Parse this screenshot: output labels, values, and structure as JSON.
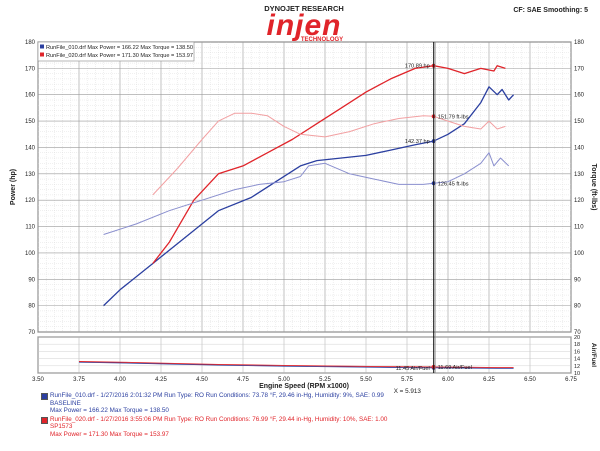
{
  "header": {
    "brand_top": "DYNOJET RESEARCH",
    "logo_text": "injen",
    "logo_sub": "TECHNOLOGY",
    "cf_text": "CF: SAE  Smoothing: 5"
  },
  "legend": [
    {
      "text": "RunFile_010.drf Max Power = 166.22   Max Torque = 138.50",
      "color": "#2b3fa0"
    },
    {
      "text": "RunFile_020.drf Max Power = 171.30   Max Torque = 153.97",
      "color": "#e0242a"
    }
  ],
  "colors": {
    "run1": "#2b3fa0",
    "run1_light": "#8a8fce",
    "run2": "#e0242a",
    "run2_light": "#f2a0a2"
  },
  "annotations": [
    {
      "label": "170.89 hp",
      "x": 5.93,
      "y": 171.0,
      "axis": "hp",
      "color": "#e0242a"
    },
    {
      "label": "151.79 ft-lbs",
      "x": 5.93,
      "y": 151.8,
      "axis": "hp",
      "color": "#e0242a"
    },
    {
      "label": "142.37 hp",
      "x": 5.88,
      "y": 142.4,
      "axis": "hp",
      "color": "#2b3fa0"
    },
    {
      "label": "126.45 ft-lbs",
      "x": 5.93,
      "y": 126.4,
      "axis": "hp",
      "color": "#2b3fa0"
    },
    {
      "label": "11.45 Air/Fuel",
      "x": 5.82,
      "y": 11.45,
      "axis": "af",
      "color": "#2b3fa0"
    },
    {
      "label": "11.69 Air/Fuel",
      "x": 5.93,
      "y": 11.69,
      "axis": "af",
      "color": "#e0242a"
    }
  ],
  "cursor_label": "X = 5.913",
  "footer": {
    "run1": {
      "line1": "RunFile_010.drf - 1/27/2016 2:01:32 PM  Run Type: RO  Run Conditions: 73.78 °F, 29.46 in-Hg,  Humidity:  9%, SAE: 0.99",
      "line2": "BASELINE",
      "line3": "Max Power = 166.22  Max Torque = 138.50",
      "color": "#2b3fa0"
    },
    "run2": {
      "line1": "RunFile_020.drf - 1/27/2016 3:55:06 PM  Run Type: RO  Run Conditions: 76.99 °F, 29.44 in-Hg,  Humidity:  10%, SAE: 1.00",
      "line2": "SP1573",
      "line3": "Max Power = 171.30  Max Torque = 153.97",
      "color": "#e0242a"
    }
  },
  "chart_data": [
    {
      "type": "line",
      "xlabel": "Engine Speed (RPM x1000)",
      "ylabel": "Power (hp)",
      "y2label": "Torque (ft-lbs)",
      "xlim": [
        3.5,
        6.75
      ],
      "ylim": [
        70,
        180
      ],
      "xticks": [
        3.5,
        3.75,
        4.0,
        4.25,
        4.5,
        4.75,
        5.0,
        5.25,
        5.5,
        5.75,
        6.0,
        6.25,
        6.5,
        6.75
      ],
      "xtick_labels": [
        "3.50",
        "3.75",
        "4.00",
        "4.25",
        "4.50",
        "4.75",
        "5.00",
        "5.25",
        "5.50",
        "5.75",
        "6.00",
        "6.25",
        "6.50",
        "6.75"
      ],
      "yticks": [
        70,
        80,
        90,
        100,
        110,
        120,
        130,
        140,
        150,
        160,
        170,
        180
      ],
      "ytick_labels": [
        "70",
        "80",
        "90",
        "100",
        "110",
        "120",
        "130",
        "140",
        "150",
        "160",
        "170",
        "180"
      ],
      "y2tick_labels": [
        "70",
        "80",
        "90",
        "100",
        "110",
        "120",
        "130",
        "140",
        "150",
        "160",
        "170",
        "180"
      ],
      "grid": true,
      "series": [
        {
          "name": "RunFile_010.drf",
          "key": "run1",
          "quantity": "power",
          "x": [
            3.9,
            4.0,
            4.2,
            4.4,
            4.6,
            4.8,
            4.95,
            5.05,
            5.1,
            5.2,
            5.35,
            5.5,
            5.65,
            5.8,
            5.913,
            6.0,
            6.1,
            6.2,
            6.25,
            6.3,
            6.33,
            6.37,
            6.4
          ],
          "y": [
            80,
            86,
            96,
            106,
            116,
            121,
            127,
            131,
            133,
            135,
            136,
            137,
            139,
            141,
            142.4,
            145,
            149,
            157,
            163,
            160,
            162,
            158,
            160
          ]
        },
        {
          "name": "RunFile_020.drf",
          "key": "run2",
          "quantity": "power",
          "x": [
            4.2,
            4.3,
            4.45,
            4.6,
            4.75,
            4.9,
            5.05,
            5.2,
            5.35,
            5.5,
            5.65,
            5.8,
            5.913,
            6.0,
            6.1,
            6.2,
            6.28,
            6.3,
            6.35
          ],
          "y": [
            96,
            104,
            120,
            130,
            133,
            138,
            143,
            149,
            155,
            161,
            166,
            170,
            171,
            170,
            168,
            170,
            169,
            171,
            170
          ]
        },
        {
          "name": "RunFile_010.drf",
          "key": "run1",
          "quantity": "torque",
          "x": [
            3.9,
            4.1,
            4.3,
            4.5,
            4.7,
            4.85,
            5.0,
            5.1,
            5.15,
            5.25,
            5.4,
            5.55,
            5.7,
            5.85,
            5.913,
            6.0,
            6.1,
            6.2,
            6.25,
            6.28,
            6.32,
            6.37
          ],
          "y": [
            107,
            111,
            116,
            120,
            124,
            126,
            127,
            129,
            133,
            134,
            130,
            128,
            126,
            126,
            126.4,
            127,
            130,
            134,
            138,
            133,
            136,
            133
          ]
        },
        {
          "name": "RunFile_020.drf",
          "key": "run2",
          "quantity": "torque",
          "x": [
            4.2,
            4.35,
            4.5,
            4.6,
            4.7,
            4.8,
            4.9,
            5.0,
            5.1,
            5.25,
            5.4,
            5.55,
            5.7,
            5.85,
            5.913,
            6.0,
            6.1,
            6.2,
            6.25,
            6.3,
            6.35
          ],
          "y": [
            122,
            132,
            143,
            150,
            153,
            153,
            152,
            148,
            145,
            144,
            146,
            149,
            151,
            152,
            151.8,
            150,
            148,
            147,
            150,
            147,
            148
          ]
        }
      ]
    },
    {
      "type": "line",
      "ylabel": "Air/Fuel",
      "xlim": [
        3.5,
        6.75
      ],
      "ylim": [
        10,
        20
      ],
      "y2ticks": [
        10,
        12,
        14,
        16,
        18,
        20
      ],
      "y2tick_labels": [
        "10",
        "12",
        "14",
        "16",
        "18",
        "20"
      ],
      "grid": true,
      "series": [
        {
          "name": "RunFile_010.drf",
          "key": "run1",
          "quantity": "air-fuel",
          "x": [
            3.75,
            4.0,
            4.3,
            4.6,
            5.0,
            5.4,
            5.7,
            5.913,
            6.1,
            6.3,
            6.4
          ],
          "y": [
            13.0,
            12.8,
            12.5,
            12.2,
            11.9,
            11.7,
            11.5,
            11.45,
            11.4,
            11.3,
            11.3
          ]
        },
        {
          "name": "RunFile_020.drf",
          "key": "run2",
          "quantity": "air-fuel",
          "x": [
            3.75,
            4.0,
            4.3,
            4.6,
            5.0,
            5.4,
            5.7,
            5.913,
            6.1,
            6.3,
            6.4
          ],
          "y": [
            13.2,
            13.0,
            12.7,
            12.4,
            12.1,
            11.9,
            11.75,
            11.69,
            11.6,
            11.5,
            11.5
          ]
        }
      ]
    }
  ]
}
